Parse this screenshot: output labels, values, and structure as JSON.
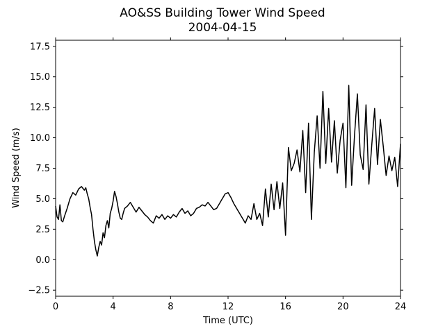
{
  "chart_data": {
    "type": "line",
    "title": "AO&SS Building Tower Wind Speed",
    "subtitle": "2004-04-15",
    "xlabel": "Time (UTC)",
    "ylabel": "Wind Speed (m/s)",
    "xlim": [
      0,
      24
    ],
    "ylim": [
      -3.0,
      18.0
    ],
    "x_ticks": [
      0,
      4,
      8,
      12,
      16,
      20,
      24
    ],
    "x_tick_labels": [
      "0",
      "4",
      "8",
      "12",
      "16",
      "20",
      "24"
    ],
    "y_ticks": [
      -2.5,
      0.0,
      2.5,
      5.0,
      7.5,
      10.0,
      12.5,
      15.0,
      17.5
    ],
    "y_tick_labels": [
      "−2.5",
      "0.0",
      "2.5",
      "5.0",
      "7.5",
      "10.0",
      "12.5",
      "15.0",
      "17.5"
    ],
    "grid": false,
    "line_color": "#000000",
    "series": [
      {
        "x": [
          0.0,
          0.1,
          0.2,
          0.3,
          0.4,
          0.5,
          0.6,
          0.8,
          1.0,
          1.2,
          1.4,
          1.6,
          1.8,
          2.0,
          2.1,
          2.2,
          2.3,
          2.4,
          2.5,
          2.6,
          2.7,
          2.8,
          2.9,
          3.0,
          3.1,
          3.2,
          3.3,
          3.4,
          3.5,
          3.6,
          3.7,
          3.8,
          3.9,
          4.0,
          4.1,
          4.2,
          4.3,
          4.4,
          4.5,
          4.6,
          4.7,
          4.8,
          5.0,
          5.2,
          5.4,
          5.6,
          5.8,
          6.0,
          6.2,
          6.4,
          6.6,
          6.8,
          7.0,
          7.2,
          7.4,
          7.6,
          7.8,
          8.0,
          8.2,
          8.4,
          8.6,
          8.8,
          9.0,
          9.2,
          9.4,
          9.6,
          9.8,
          10.0,
          10.2,
          10.4,
          10.6,
          10.8,
          11.0,
          11.2,
          11.4,
          11.6,
          11.8,
          12.0,
          12.2,
          12.4,
          12.6,
          12.8,
          13.0,
          13.2,
          13.4,
          13.6,
          13.8,
          14.0,
          14.2,
          14.4,
          14.6,
          14.8,
          15.0,
          15.2,
          15.4,
          15.6,
          15.8,
          16.0,
          16.2,
          16.4,
          16.6,
          16.8,
          17.0,
          17.2,
          17.4,
          17.6,
          17.8,
          18.0,
          18.2,
          18.4,
          18.6,
          18.8,
          19.0,
          19.2,
          19.4,
          19.6,
          19.8,
          20.0,
          20.2,
          20.4,
          20.6,
          20.8,
          21.0,
          21.2,
          21.4,
          21.6,
          21.8,
          22.0,
          22.2,
          22.4,
          22.6,
          22.8,
          23.0,
          23.2,
          23.4,
          23.6,
          23.8,
          24.0
        ],
        "values": [
          4.4,
          3.5,
          3.3,
          4.5,
          3.2,
          3.1,
          3.5,
          4.2,
          5.0,
          5.5,
          5.3,
          5.8,
          6.0,
          5.7,
          5.9,
          5.4,
          5.0,
          4.3,
          3.7,
          2.5,
          1.5,
          0.8,
          0.3,
          1.0,
          1.5,
          1.2,
          2.2,
          1.8,
          2.8,
          3.2,
          2.6,
          3.8,
          4.2,
          4.8,
          5.6,
          5.2,
          4.6,
          3.9,
          3.4,
          3.3,
          3.8,
          4.2,
          4.4,
          4.7,
          4.3,
          3.9,
          4.3,
          4.0,
          3.7,
          3.5,
          3.2,
          3.0,
          3.6,
          3.4,
          3.7,
          3.3,
          3.6,
          3.4,
          3.7,
          3.5,
          3.9,
          4.2,
          3.8,
          4.0,
          3.6,
          3.8,
          4.2,
          4.3,
          4.5,
          4.4,
          4.7,
          4.4,
          4.1,
          4.2,
          4.6,
          5.0,
          5.4,
          5.5,
          5.1,
          4.6,
          4.2,
          3.8,
          3.4,
          3.0,
          3.6,
          3.3,
          4.6,
          3.3,
          3.8,
          2.8,
          5.8,
          3.5,
          6.2,
          4.1,
          6.4,
          4.2,
          6.3,
          2.0,
          9.2,
          7.3,
          7.9,
          9.0,
          7.2,
          10.6,
          5.5,
          11.2,
          3.3,
          8.8,
          11.8,
          7.5,
          13.8,
          7.9,
          12.4,
          8.0,
          11.4,
          7.1,
          9.8,
          11.2,
          5.9,
          14.3,
          6.1,
          10.2,
          13.6,
          8.6,
          7.4,
          12.7,
          6.2,
          9.4,
          12.4,
          7.8,
          11.5,
          9.3,
          6.9,
          8.5,
          7.3,
          8.4,
          6.0,
          9.5
        ]
      }
    ]
  }
}
